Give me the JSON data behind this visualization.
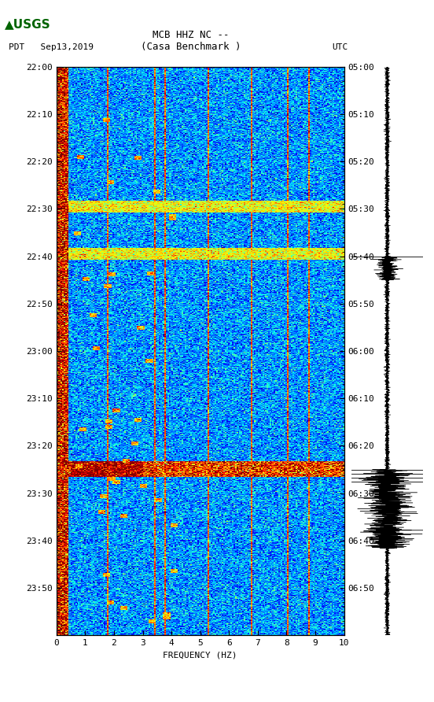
{
  "title_line1": "MCB HHZ NC --",
  "title_line2": "(Casa Benchmark )",
  "left_label": "PDT   Sep13,2019",
  "right_label": "UTC",
  "left_times": [
    "22:00",
    "22:10",
    "22:20",
    "22:30",
    "22:40",
    "22:50",
    "23:00",
    "23:10",
    "23:20",
    "23:30",
    "23:40",
    "23:50"
  ],
  "right_times": [
    "05:00",
    "05:10",
    "05:20",
    "05:30",
    "05:40",
    "05:50",
    "06:00",
    "06:10",
    "06:20",
    "06:30",
    "06:40",
    "06:50"
  ],
  "freq_label": "FREQUENCY (HZ)",
  "freq_ticks": [
    0,
    1,
    2,
    3,
    4,
    5,
    6,
    7,
    8,
    9,
    10
  ],
  "freq_min": 0,
  "freq_max": 10,
  "n_time": 720,
  "n_freq": 200,
  "background_color": "#ffffff",
  "spectrogram_colormap": "jet",
  "usgs_logo_color": "#006400",
  "seismogram_color": "#000000"
}
